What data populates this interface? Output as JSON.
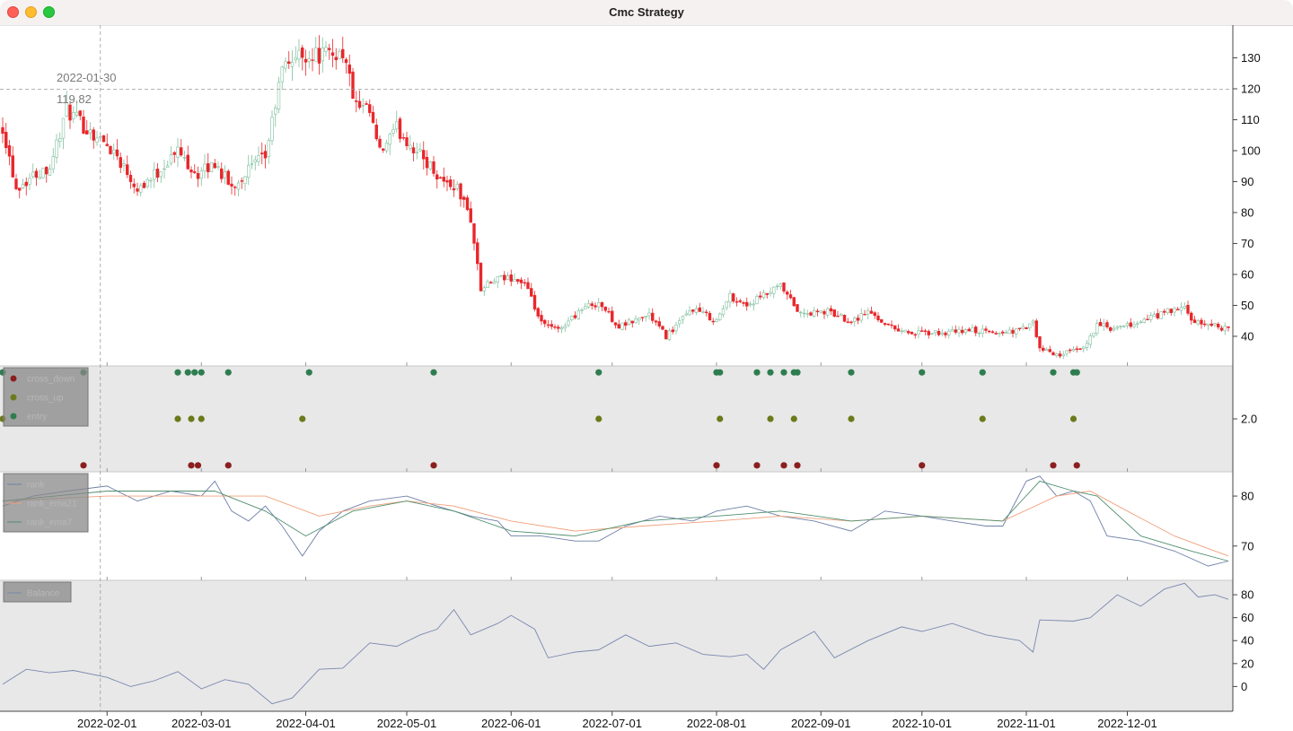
{
  "window": {
    "title": "Cmc Strategy"
  },
  "crosshair": {
    "date": "2022-01-30",
    "price": "119.82"
  },
  "chart_data": [
    {
      "type": "candlestick",
      "panel": "price",
      "y_ticks": [
        40,
        50,
        60,
        70,
        80,
        90,
        100,
        110,
        120,
        130
      ],
      "ylim": [
        31,
        140
      ],
      "grid": false,
      "x_ticks": [
        "2022-02-01",
        "2022-03-01",
        "2022-04-01",
        "2022-05-01",
        "2022-06-01",
        "2022-07-01",
        "2022-08-01",
        "2022-09-01",
        "2022-10-01",
        "2022-11-01",
        "2022-12-01"
      ],
      "xlim": [
        "2022-01-01",
        "2022-12-31"
      ],
      "colors": {
        "up": "#7fbf9f",
        "down": "#e8262b"
      },
      "close_keypoints": [
        [
          "2022-01-01",
          108
        ],
        [
          "2022-01-05",
          88
        ],
        [
          "2022-01-10",
          92
        ],
        [
          "2022-01-15",
          95
        ],
        [
          "2022-01-20",
          113
        ],
        [
          "2022-01-25",
          108
        ],
        [
          "2022-02-03",
          100
        ],
        [
          "2022-02-10",
          88
        ],
        [
          "2022-02-15",
          92
        ],
        [
          "2022-02-22",
          100
        ],
        [
          "2022-02-28",
          92
        ],
        [
          "2022-03-05",
          96
        ],
        [
          "2022-03-10",
          88
        ],
        [
          "2022-03-15",
          94
        ],
        [
          "2022-03-20",
          98
        ],
        [
          "2022-03-25",
          126
        ],
        [
          "2022-03-28",
          130
        ],
        [
          "2022-04-01",
          131
        ],
        [
          "2022-04-08",
          131
        ],
        [
          "2022-04-12",
          132
        ],
        [
          "2022-04-16",
          114
        ],
        [
          "2022-04-20",
          112
        ],
        [
          "2022-04-23",
          99
        ],
        [
          "2022-04-28",
          107
        ],
        [
          "2022-05-03",
          101
        ],
        [
          "2022-05-08",
          95
        ],
        [
          "2022-05-12",
          90
        ],
        [
          "2022-05-16",
          88
        ],
        [
          "2022-05-20",
          78
        ],
        [
          "2022-05-23",
          55
        ],
        [
          "2022-05-27",
          58
        ],
        [
          "2022-06-01",
          59
        ],
        [
          "2022-06-05",
          57
        ],
        [
          "2022-06-10",
          44
        ],
        [
          "2022-06-15",
          42
        ],
        [
          "2022-06-22",
          49
        ],
        [
          "2022-06-27",
          51
        ],
        [
          "2022-07-03",
          43
        ],
        [
          "2022-07-12",
          47
        ],
        [
          "2022-07-17",
          40
        ],
        [
          "2022-07-25",
          49
        ],
        [
          "2022-08-01",
          45
        ],
        [
          "2022-08-05",
          53
        ],
        [
          "2022-08-10",
          50
        ],
        [
          "2022-08-20",
          56
        ],
        [
          "2022-08-26",
          47
        ],
        [
          "2022-09-03",
          48
        ],
        [
          "2022-09-10",
          45
        ],
        [
          "2022-09-15",
          48
        ],
        [
          "2022-09-22",
          43
        ],
        [
          "2022-09-28",
          41
        ],
        [
          "2022-10-08",
          41
        ],
        [
          "2022-10-15",
          42
        ],
        [
          "2022-10-23",
          41
        ],
        [
          "2022-10-30",
          42
        ],
        [
          "2022-11-03",
          44
        ],
        [
          "2022-11-05",
          36
        ],
        [
          "2022-11-10",
          34
        ],
        [
          "2022-11-18",
          36
        ],
        [
          "2022-11-22",
          44
        ],
        [
          "2022-11-27",
          42
        ],
        [
          "2022-12-03",
          44
        ],
        [
          "2022-12-13",
          48
        ],
        [
          "2022-12-18",
          49
        ],
        [
          "2022-12-21",
          44
        ],
        [
          "2022-12-26",
          44
        ],
        [
          "2022-12-31",
          42
        ]
      ]
    },
    {
      "type": "scatter",
      "panel": "signals",
      "y_ticks": [
        2.0
      ],
      "ylim": [
        0.9,
        3.1
      ],
      "legend": {
        "placement": "top-left",
        "entries": [
          "cross_down",
          "cross_up",
          "entry"
        ]
      },
      "series": [
        {
          "name": "cross_down",
          "y": 1,
          "color": "#8b1f1f",
          "x": [
            "2022-01-25",
            "2022-02-26",
            "2022-02-28",
            "2022-03-09",
            "2022-05-09",
            "2022-08-01",
            "2022-08-13",
            "2022-08-21",
            "2022-08-25",
            "2022-10-01",
            "2022-11-09",
            "2022-11-16"
          ]
        },
        {
          "name": "cross_up",
          "y": 2,
          "color": "#6b7a1a",
          "x": [
            "2022-01-01",
            "2022-02-22",
            "2022-02-26",
            "2022-03-01",
            "2022-03-31",
            "2022-06-27",
            "2022-08-02",
            "2022-08-17",
            "2022-08-24",
            "2022-09-10",
            "2022-10-19",
            "2022-11-15"
          ]
        },
        {
          "name": "entry",
          "y": 3,
          "color": "#2e7d4f",
          "x": [
            "2022-01-01",
            "2022-01-25",
            "2022-02-22",
            "2022-02-25",
            "2022-02-27",
            "2022-03-01",
            "2022-03-09",
            "2022-04-02",
            "2022-05-09",
            "2022-06-27",
            "2022-08-01",
            "2022-08-02",
            "2022-08-13",
            "2022-08-17",
            "2022-08-21",
            "2022-08-24",
            "2022-08-25",
            "2022-09-10",
            "2022-10-01",
            "2022-10-19",
            "2022-11-09",
            "2022-11-15",
            "2022-11-16"
          ]
        }
      ]
    },
    {
      "type": "line",
      "panel": "rank",
      "y_ticks": [
        70,
        80
      ],
      "ylim": [
        63.5,
        84.5
      ],
      "legend": {
        "placement": "top-left",
        "entries": [
          "rank",
          "rank_ema21",
          "rank_ema7"
        ]
      },
      "series": [
        {
          "name": "rank",
          "color": "#6f7fa8",
          "points": [
            [
              "2022-01-01",
              78
            ],
            [
              "2022-01-10",
              80
            ],
            [
              "2022-01-20",
              81
            ],
            [
              "2022-02-01",
              82
            ],
            [
              "2022-02-10",
              79
            ],
            [
              "2022-02-20",
              81
            ],
            [
              "2022-03-01",
              80
            ],
            [
              "2022-03-05",
              83
            ],
            [
              "2022-03-10",
              77
            ],
            [
              "2022-03-15",
              75
            ],
            [
              "2022-03-20",
              78
            ],
            [
              "2022-03-25",
              74
            ],
            [
              "2022-03-31",
              68
            ],
            [
              "2022-04-05",
              73
            ],
            [
              "2022-04-12",
              77
            ],
            [
              "2022-04-20",
              79
            ],
            [
              "2022-05-01",
              80
            ],
            [
              "2022-05-10",
              78
            ],
            [
              "2022-05-20",
              76
            ],
            [
              "2022-05-28",
              75
            ],
            [
              "2022-06-01",
              72
            ],
            [
              "2022-06-10",
              72
            ],
            [
              "2022-06-20",
              71
            ],
            [
              "2022-06-27",
              71
            ],
            [
              "2022-07-05",
              74
            ],
            [
              "2022-07-15",
              76
            ],
            [
              "2022-07-25",
              75
            ],
            [
              "2022-08-01",
              77
            ],
            [
              "2022-08-10",
              78
            ],
            [
              "2022-08-20",
              76
            ],
            [
              "2022-08-30",
              75
            ],
            [
              "2022-09-10",
              73
            ],
            [
              "2022-09-20",
              77
            ],
            [
              "2022-10-01",
              76
            ],
            [
              "2022-10-10",
              75
            ],
            [
              "2022-10-20",
              74
            ],
            [
              "2022-10-25",
              74
            ],
            [
              "2022-11-01",
              83
            ],
            [
              "2022-11-05",
              84
            ],
            [
              "2022-11-10",
              80
            ],
            [
              "2022-11-15",
              81
            ],
            [
              "2022-11-20",
              79
            ],
            [
              "2022-11-25",
              72
            ],
            [
              "2022-12-05",
              71
            ],
            [
              "2022-12-15",
              69
            ],
            [
              "2022-12-25",
              66
            ],
            [
              "2022-12-31",
              67
            ]
          ]
        },
        {
          "name": "rank_ema21",
          "color": "#f1a07a",
          "points": [
            [
              "2022-01-01",
              79
            ],
            [
              "2022-02-01",
              80
            ],
            [
              "2022-03-01",
              80
            ],
            [
              "2022-03-20",
              80
            ],
            [
              "2022-04-05",
              76
            ],
            [
              "2022-04-20",
              78
            ],
            [
              "2022-05-01",
              79
            ],
            [
              "2022-05-15",
              78
            ],
            [
              "2022-06-01",
              75
            ],
            [
              "2022-06-20",
              73
            ],
            [
              "2022-07-10",
              74
            ],
            [
              "2022-08-01",
              75
            ],
            [
              "2022-08-20",
              76
            ],
            [
              "2022-09-10",
              75
            ],
            [
              "2022-10-01",
              76
            ],
            [
              "2022-10-25",
              75
            ],
            [
              "2022-11-10",
              80
            ],
            [
              "2022-11-20",
              81
            ],
            [
              "2022-12-01",
              77
            ],
            [
              "2022-12-15",
              72
            ],
            [
              "2022-12-31",
              68
            ]
          ]
        },
        {
          "name": "rank_ema7",
          "color": "#4f8f6f",
          "points": [
            [
              "2022-01-01",
              79
            ],
            [
              "2022-02-01",
              81
            ],
            [
              "2022-03-05",
              81
            ],
            [
              "2022-03-20",
              77
            ],
            [
              "2022-04-01",
              72
            ],
            [
              "2022-04-15",
              77
            ],
            [
              "2022-05-01",
              79
            ],
            [
              "2022-05-15",
              77
            ],
            [
              "2022-06-01",
              73
            ],
            [
              "2022-06-20",
              72
            ],
            [
              "2022-07-10",
              75
            ],
            [
              "2022-08-01",
              76
            ],
            [
              "2022-08-20",
              77
            ],
            [
              "2022-09-10",
              75
            ],
            [
              "2022-10-01",
              76
            ],
            [
              "2022-10-25",
              75
            ],
            [
              "2022-11-05",
              83
            ],
            [
              "2022-11-15",
              81
            ],
            [
              "2022-11-22",
              80
            ],
            [
              "2022-12-05",
              72
            ],
            [
              "2022-12-20",
              69
            ],
            [
              "2022-12-31",
              67
            ]
          ]
        }
      ]
    },
    {
      "type": "line",
      "panel": "balance",
      "y_ticks": [
        0,
        20,
        40,
        60,
        80
      ],
      "ylim": [
        -20,
        91
      ],
      "legend": {
        "placement": "top-left",
        "entries": [
          "Balance"
        ]
      },
      "series": [
        {
          "name": "Balance",
          "color": "#7a88b0",
          "points": [
            [
              "2022-01-01",
              2
            ],
            [
              "2022-01-08",
              15
            ],
            [
              "2022-01-15",
              12
            ],
            [
              "2022-01-22",
              14
            ],
            [
              "2022-02-01",
              8
            ],
            [
              "2022-02-08",
              0
            ],
            [
              "2022-02-15",
              5
            ],
            [
              "2022-02-22",
              13
            ],
            [
              "2022-03-01",
              -2
            ],
            [
              "2022-03-08",
              6
            ],
            [
              "2022-03-15",
              2
            ],
            [
              "2022-03-22",
              -15
            ],
            [
              "2022-03-28",
              -10
            ],
            [
              "2022-04-05",
              15
            ],
            [
              "2022-04-12",
              16
            ],
            [
              "2022-04-20",
              38
            ],
            [
              "2022-04-28",
              35
            ],
            [
              "2022-05-05",
              45
            ],
            [
              "2022-05-10",
              50
            ],
            [
              "2022-05-15",
              67
            ],
            [
              "2022-05-20",
              45
            ],
            [
              "2022-05-28",
              55
            ],
            [
              "2022-06-01",
              62
            ],
            [
              "2022-06-08",
              50
            ],
            [
              "2022-06-12",
              25
            ],
            [
              "2022-06-20",
              30
            ],
            [
              "2022-06-27",
              32
            ],
            [
              "2022-07-05",
              45
            ],
            [
              "2022-07-12",
              35
            ],
            [
              "2022-07-20",
              38
            ],
            [
              "2022-07-28",
              28
            ],
            [
              "2022-08-05",
              26
            ],
            [
              "2022-08-10",
              28
            ],
            [
              "2022-08-15",
              15
            ],
            [
              "2022-08-20",
              32
            ],
            [
              "2022-08-30",
              48
            ],
            [
              "2022-09-05",
              25
            ],
            [
              "2022-09-15",
              40
            ],
            [
              "2022-09-25",
              52
            ],
            [
              "2022-10-01",
              48
            ],
            [
              "2022-10-10",
              55
            ],
            [
              "2022-10-20",
              45
            ],
            [
              "2022-10-30",
              40
            ],
            [
              "2022-11-03",
              30
            ],
            [
              "2022-11-05",
              58
            ],
            [
              "2022-11-15",
              57
            ],
            [
              "2022-11-20",
              60
            ],
            [
              "2022-11-28",
              80
            ],
            [
              "2022-12-05",
              70
            ],
            [
              "2022-12-12",
              85
            ],
            [
              "2022-12-18",
              90
            ],
            [
              "2022-12-22",
              78
            ],
            [
              "2022-12-27",
              80
            ],
            [
              "2022-12-31",
              76
            ]
          ]
        }
      ]
    }
  ]
}
